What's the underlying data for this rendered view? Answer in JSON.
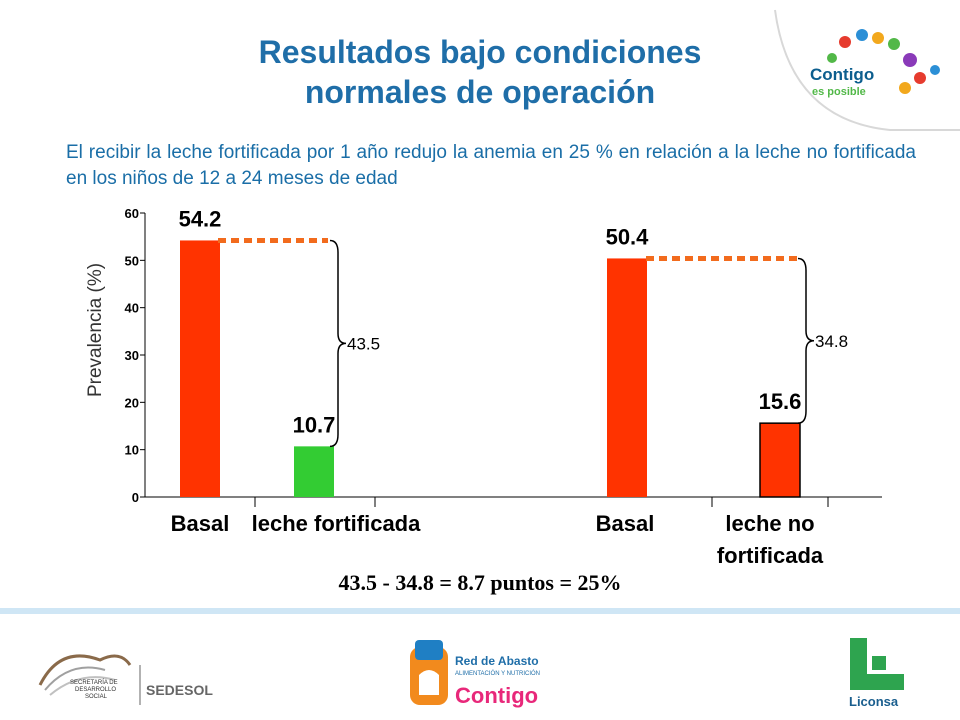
{
  "slide": {
    "title_line1": "Resultados bajo condiciones",
    "title_line2": "normales de operación",
    "subtitle": "El recibir la leche fortificada por 1 año redujo la anemia en 25 % en relación a la leche no fortificada en los niños de 12 a 24 meses de edad",
    "formula": "43.5 - 34.8 = 8.7 puntos = 25%"
  },
  "logos": {
    "top_right": {
      "line1": "Contigo",
      "line2": "es posible"
    },
    "footer_left": {
      "line1": "SECRETARÍA DE",
      "line2": "DESARROLLO",
      "line3": "SOCIAL",
      "brand": "SEDESOL"
    },
    "footer_center": {
      "line1": "Red de Abasto",
      "line2": "ALIMENTACIÓN Y NUTRICIÓN",
      "line3": "Contigo"
    },
    "footer_right": {
      "brand": "Liconsa"
    }
  },
  "colors": {
    "red": "#ff3300",
    "green": "#33cc33",
    "orange_dash": "#f26b1d",
    "title_blue": "#1f6ea8"
  },
  "chart_data": {
    "type": "bar",
    "ylabel": "Prevalencia (%)",
    "ylim": [
      0,
      60
    ],
    "yticks": [
      "0",
      "10",
      "20",
      "30",
      "40",
      "50",
      "60"
    ],
    "categories": [
      "Basal",
      "leche fortificada",
      "Basal",
      "leche no fortificada"
    ],
    "category_lines": [
      [
        "Basal"
      ],
      [
        "leche fortificada"
      ],
      [
        "Basal"
      ],
      [
        "leche no",
        "fortificada"
      ]
    ],
    "values": [
      54.2,
      10.7,
      50.4,
      15.6
    ],
    "value_labels": [
      "54.2",
      "10.7",
      "50.4",
      "15.6"
    ],
    "bar_colors": [
      "#ff3300",
      "#33cc33",
      "#ff3300",
      "#ff3300"
    ],
    "differences": [
      {
        "label": "43.5",
        "from_bar": 0,
        "to_bar": 1
      },
      {
        "label": "34.8",
        "from_bar": 2,
        "to_bar": 3
      }
    ]
  }
}
